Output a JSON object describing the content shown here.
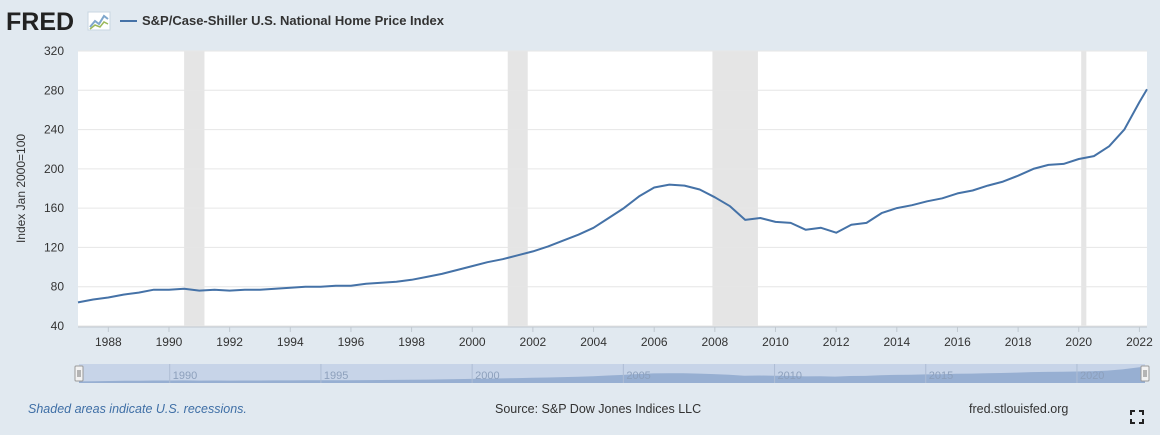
{
  "header": {
    "logo_text": "FRED",
    "legend_label": "S&P/Case-Shiller U.S. National Home Price Index"
  },
  "footer": {
    "recession_note": "Shaded areas indicate U.S. recessions.",
    "source": "Source: S&P Dow Jones Indices LLC",
    "site": "fred.stlouisfed.org"
  },
  "colors": {
    "series": "#4572a7",
    "recession": "#e5e5e5",
    "background": "#e1e9f0",
    "plot": "#ffffff"
  },
  "chart_data": {
    "type": "line",
    "title": "",
    "xlabel": "",
    "ylabel": "Index Jan 2000=100",
    "xlim": [
      1987.0,
      2022.25
    ],
    "ylim": [
      40,
      320
    ],
    "yticks": [
      40,
      80,
      120,
      160,
      200,
      240,
      280,
      320
    ],
    "xticks": [
      "1988",
      "1990",
      "1992",
      "1994",
      "1996",
      "1998",
      "2000",
      "2002",
      "2004",
      "2006",
      "2008",
      "2010",
      "2012",
      "2014",
      "2016",
      "2018",
      "2020",
      "2022"
    ],
    "grid": true,
    "recessions": [
      [
        1990.5,
        1991.17
      ],
      [
        2001.17,
        2001.83
      ],
      [
        2007.92,
        2009.42
      ],
      [
        2020.08,
        2020.25
      ]
    ],
    "navigator_ticks": [
      "1990",
      "1995",
      "2000",
      "2005",
      "2010",
      "2015",
      "2020"
    ],
    "series": [
      {
        "name": "S&P/Case-Shiller U.S. National Home Price Index",
        "x": [
          1987.0,
          1987.5,
          1988.0,
          1988.5,
          1989.0,
          1989.5,
          1990.0,
          1990.5,
          1991.0,
          1991.5,
          1992.0,
          1992.5,
          1993.0,
          1993.5,
          1994.0,
          1994.5,
          1995.0,
          1995.5,
          1996.0,
          1996.5,
          1997.0,
          1997.5,
          1998.0,
          1998.5,
          1999.0,
          1999.5,
          2000.0,
          2000.5,
          2001.0,
          2001.5,
          2002.0,
          2002.5,
          2003.0,
          2003.5,
          2004.0,
          2004.5,
          2005.0,
          2005.5,
          2006.0,
          2006.5,
          2007.0,
          2007.5,
          2008.0,
          2008.5,
          2009.0,
          2009.5,
          2010.0,
          2010.5,
          2011.0,
          2011.5,
          2012.0,
          2012.5,
          2013.0,
          2013.5,
          2014.0,
          2014.5,
          2015.0,
          2015.5,
          2016.0,
          2016.5,
          2017.0,
          2017.5,
          2018.0,
          2018.5,
          2019.0,
          2019.5,
          2020.0,
          2020.5,
          2021.0,
          2021.5,
          2022.0,
          2022.25
        ],
        "y": [
          64,
          67,
          69,
          72,
          74,
          77,
          77,
          78,
          76,
          77,
          76,
          77,
          77,
          78,
          79,
          80,
          80,
          81,
          81,
          83,
          84,
          85,
          87,
          90,
          93,
          97,
          101,
          105,
          108,
          112,
          116,
          121,
          127,
          133,
          140,
          150,
          160,
          172,
          181,
          184,
          183,
          179,
          171,
          162,
          148,
          150,
          146,
          145,
          138,
          140,
          135,
          143,
          145,
          155,
          160,
          163,
          167,
          170,
          175,
          178,
          183,
          187,
          193,
          200,
          204,
          205,
          210,
          213,
          223,
          240,
          268,
          281
        ]
      }
    ]
  }
}
